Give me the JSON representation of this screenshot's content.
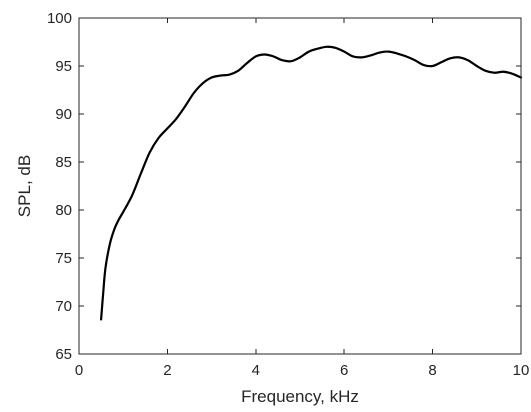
{
  "chart_data": {
    "type": "line",
    "title": "",
    "xlabel": "Frequency, kHz",
    "ylabel": "SPL, dB",
    "xlim": [
      0,
      10
    ],
    "ylim": [
      65,
      100
    ],
    "xticks": [
      0,
      2,
      4,
      6,
      8,
      10
    ],
    "yticks": [
      65,
      70,
      75,
      80,
      85,
      90,
      95,
      100
    ],
    "xtick_labels": [
      "0",
      "2",
      "4",
      "6",
      "8",
      "10"
    ],
    "ytick_labels": [
      "65",
      "70",
      "75",
      "80",
      "85",
      "90",
      "95",
      "100"
    ],
    "grid": false,
    "legend": "none",
    "box": true,
    "series": [
      {
        "color": "#000000",
        "x": [
          0.5,
          0.55,
          0.6,
          0.7,
          0.8,
          0.9,
          1.0,
          1.2,
          1.4,
          1.6,
          1.8,
          2.0,
          2.2,
          2.4,
          2.6,
          2.8,
          3.0,
          3.2,
          3.4,
          3.6,
          3.8,
          4.0,
          4.2,
          4.4,
          4.6,
          4.8,
          5.0,
          5.2,
          5.4,
          5.6,
          5.8,
          6.0,
          6.2,
          6.4,
          6.6,
          6.8,
          7.0,
          7.2,
          7.4,
          7.6,
          7.8,
          8.0,
          8.2,
          8.4,
          8.6,
          8.8,
          9.0,
          9.2,
          9.4,
          9.6,
          9.8,
          10.0
        ],
        "y": [
          68.6,
          71.5,
          74.0,
          76.5,
          78.0,
          79.0,
          79.8,
          81.5,
          83.8,
          86.0,
          87.5,
          88.5,
          89.5,
          90.8,
          92.2,
          93.2,
          93.8,
          94.0,
          94.1,
          94.5,
          95.3,
          96.0,
          96.2,
          96.0,
          95.6,
          95.5,
          95.9,
          96.5,
          96.8,
          97.0,
          96.9,
          96.5,
          96.0,
          95.9,
          96.1,
          96.4,
          96.5,
          96.3,
          96.0,
          95.6,
          95.1,
          95.0,
          95.4,
          95.8,
          95.9,
          95.6,
          95.0,
          94.5,
          94.3,
          94.4,
          94.2,
          93.8
        ]
      }
    ]
  }
}
